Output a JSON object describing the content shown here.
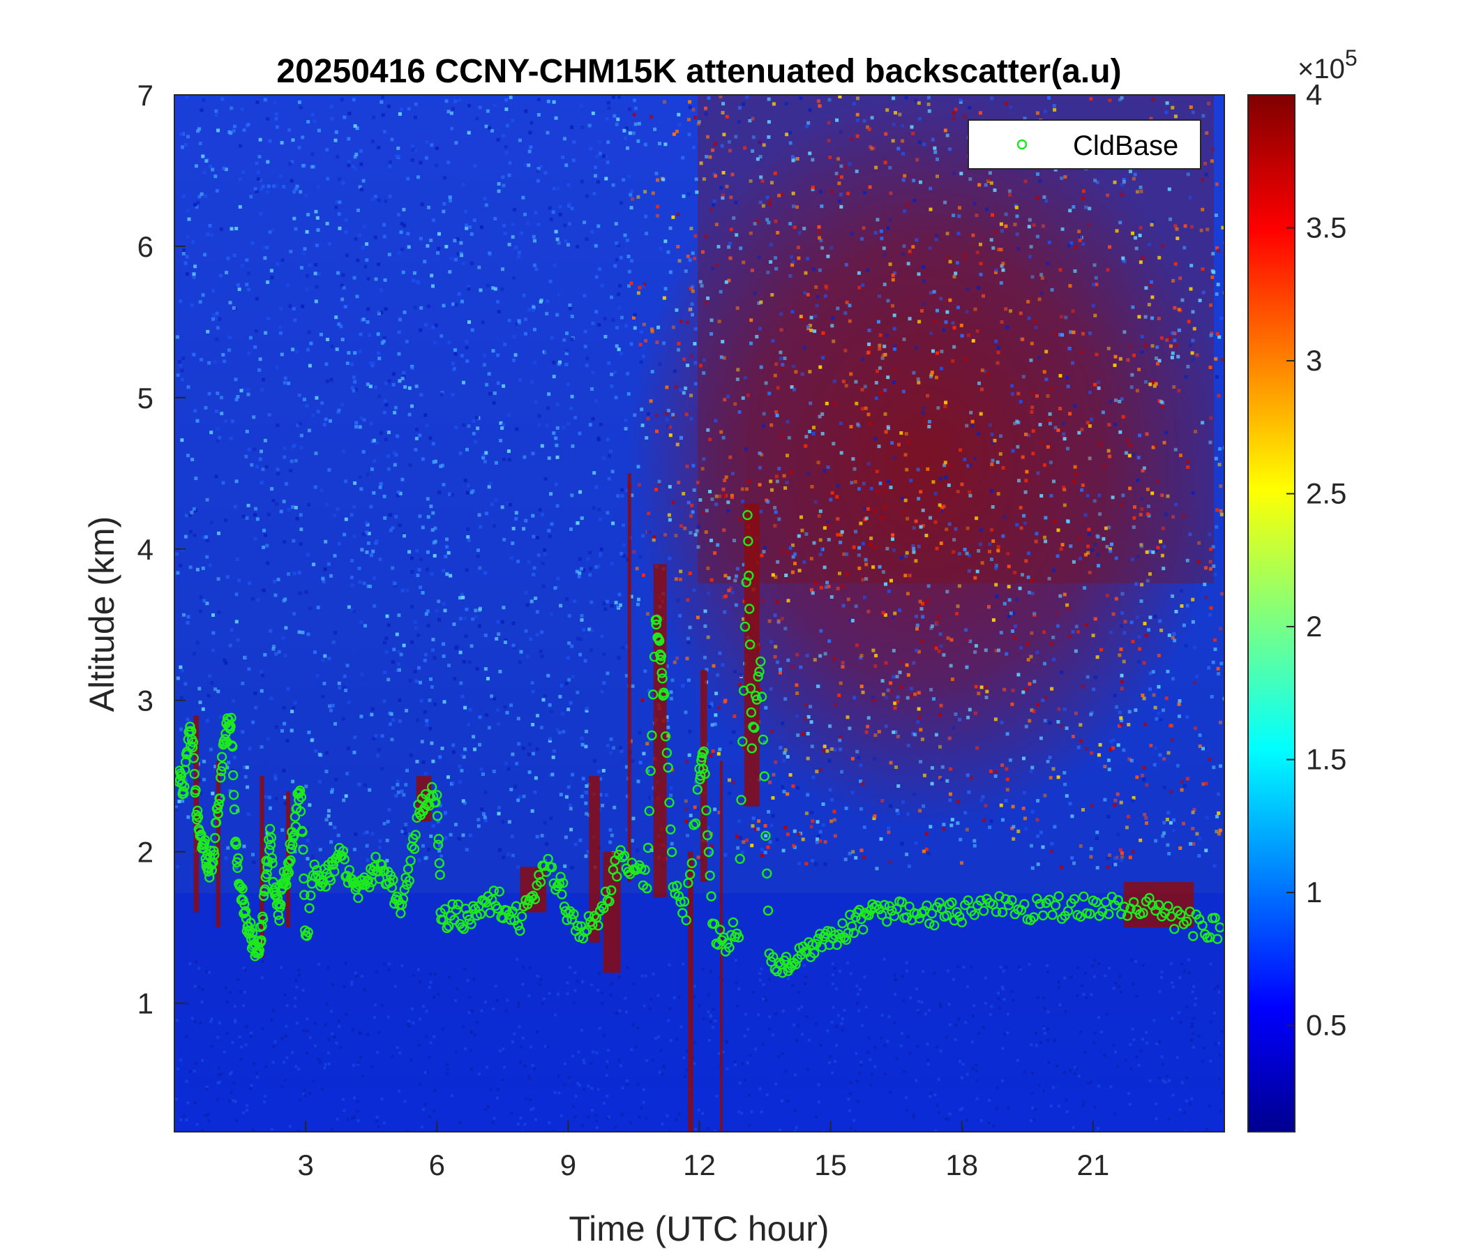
{
  "chart_data": {
    "type": "heatmap",
    "title": "20250416 CCNY-CHM15K attenuated backscatter(a.u)",
    "xlabel": "Time (UTC hour)",
    "ylabel": "Altitude (km)",
    "xlim": [
      0,
      24
    ],
    "ylim": [
      0.15,
      7
    ],
    "x_ticks": [
      3,
      6,
      9,
      12,
      15,
      18,
      21
    ],
    "x_tick_labels": [
      "3",
      "6",
      "9",
      "12",
      "15",
      "18",
      "21"
    ],
    "y_ticks": [
      1,
      2,
      3,
      4,
      5,
      6,
      7
    ],
    "y_tick_labels": [
      "1",
      "2",
      "3",
      "4",
      "5",
      "6",
      "7"
    ],
    "colormap": "jet",
    "colorbar": {
      "range": [
        10000,
        400000
      ],
      "ticks": [
        0.5,
        1,
        1.5,
        2,
        2.5,
        3,
        3.5,
        4
      ],
      "tick_labels": [
        "0.5",
        "1",
        "1.5",
        "2",
        "2.5",
        "3",
        "3.5",
        "4"
      ],
      "multiplier_base": "×10",
      "multiplier_exponent": "5"
    },
    "legend": {
      "position": "top-right",
      "entries": [
        "CldBase"
      ]
    },
    "series": [
      {
        "name": "CldBase",
        "marker": "circle",
        "color": "#1ee81e",
        "points": [
          [
            0.1,
            2.5
          ],
          [
            0.2,
            2.4
          ],
          [
            0.3,
            2.7
          ],
          [
            0.4,
            2.8
          ],
          [
            0.5,
            2.3
          ],
          [
            0.6,
            2.1
          ],
          [
            0.7,
            2.0
          ],
          [
            0.8,
            1.9
          ],
          [
            0.9,
            2.0
          ],
          [
            1.0,
            2.3
          ],
          [
            1.1,
            2.6
          ],
          [
            1.2,
            2.8
          ],
          [
            1.3,
            2.9
          ],
          [
            1.4,
            2.0
          ],
          [
            1.5,
            1.8
          ],
          [
            1.6,
            1.6
          ],
          [
            1.7,
            1.5
          ],
          [
            1.8,
            1.4
          ],
          [
            1.9,
            1.35
          ],
          [
            2.0,
            1.5
          ],
          [
            2.1,
            1.9
          ],
          [
            2.2,
            2.1
          ],
          [
            2.3,
            1.7
          ],
          [
            2.4,
            1.6
          ],
          [
            2.5,
            1.8
          ],
          [
            2.6,
            1.9
          ],
          [
            2.7,
            2.1
          ],
          [
            2.8,
            2.3
          ],
          [
            2.9,
            2.35
          ],
          [
            3.0,
            1.4
          ],
          [
            3.2,
            1.9
          ],
          [
            3.4,
            1.8
          ],
          [
            3.6,
            1.9
          ],
          [
            3.8,
            2.0
          ],
          [
            4.0,
            1.8
          ],
          [
            4.2,
            1.75
          ],
          [
            4.4,
            1.8
          ],
          [
            4.6,
            1.9
          ],
          [
            4.8,
            1.85
          ],
          [
            5.0,
            1.75
          ],
          [
            5.2,
            1.65
          ],
          [
            5.4,
            1.9
          ],
          [
            5.6,
            2.3
          ],
          [
            5.8,
            2.35
          ],
          [
            6.0,
            2.35
          ],
          [
            6.1,
            1.55
          ],
          [
            6.4,
            1.6
          ],
          [
            6.7,
            1.55
          ],
          [
            7.0,
            1.6
          ],
          [
            7.3,
            1.7
          ],
          [
            7.6,
            1.6
          ],
          [
            7.9,
            1.55
          ],
          [
            8.2,
            1.7
          ],
          [
            8.5,
            1.9
          ],
          [
            8.8,
            1.8
          ],
          [
            9.0,
            1.6
          ],
          [
            9.3,
            1.5
          ],
          [
            9.6,
            1.55
          ],
          [
            9.9,
            1.7
          ],
          [
            10.2,
            2.0
          ],
          [
            10.5,
            1.9
          ],
          [
            10.8,
            1.8
          ],
          [
            11.0,
            3.6
          ],
          [
            11.1,
            3.3
          ],
          [
            11.2,
            3.0
          ],
          [
            11.4,
            1.8
          ],
          [
            11.7,
            1.6
          ],
          [
            12.0,
            2.5
          ],
          [
            12.1,
            2.6
          ],
          [
            12.3,
            1.5
          ],
          [
            12.6,
            1.4
          ],
          [
            12.9,
            1.5
          ],
          [
            13.1,
            4.2
          ],
          [
            13.2,
            2.7
          ],
          [
            13.4,
            3.3
          ],
          [
            13.6,
            1.3
          ],
          [
            13.9,
            1.25
          ],
          [
            14.2,
            1.3
          ],
          [
            14.5,
            1.35
          ],
          [
            14.8,
            1.4
          ],
          [
            15.1,
            1.45
          ],
          [
            15.4,
            1.5
          ],
          [
            15.7,
            1.55
          ],
          [
            16.0,
            1.6
          ],
          [
            16.4,
            1.6
          ],
          [
            16.8,
            1.62
          ],
          [
            17.2,
            1.6
          ],
          [
            17.6,
            1.58
          ],
          [
            18.0,
            1.6
          ],
          [
            18.5,
            1.62
          ],
          [
            19.0,
            1.65
          ],
          [
            19.5,
            1.62
          ],
          [
            20.0,
            1.63
          ],
          [
            20.5,
            1.64
          ],
          [
            21.0,
            1.62
          ],
          [
            21.5,
            1.65
          ],
          [
            22.0,
            1.66
          ],
          [
            22.5,
            1.62
          ],
          [
            23.0,
            1.55
          ],
          [
            23.5,
            1.5
          ],
          [
            23.9,
            1.5
          ]
        ]
      }
    ]
  }
}
